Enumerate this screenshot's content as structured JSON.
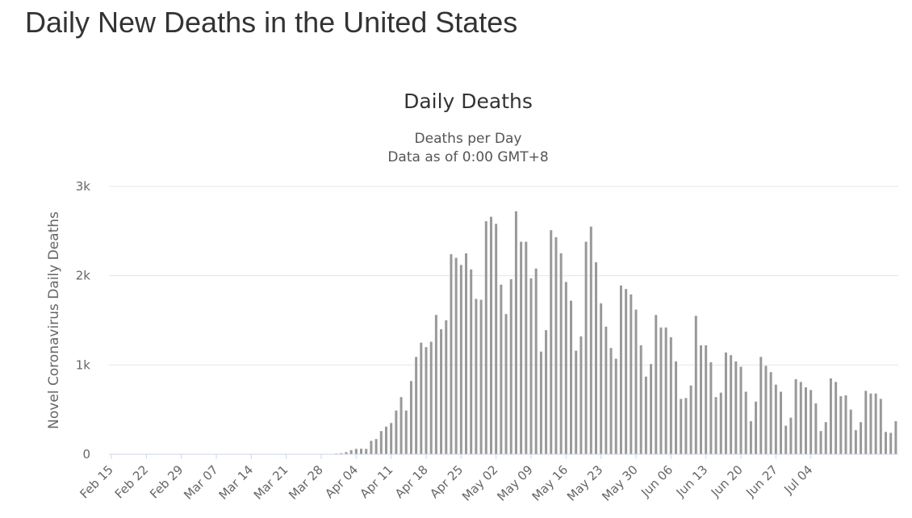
{
  "page": {
    "title": "Daily New Deaths in the United States"
  },
  "chart_data": {
    "type": "bar",
    "title": "Daily Deaths",
    "subtitle": [
      "Deaths per Day",
      "Data as of 0:00 GMT+8"
    ],
    "xlabel": "",
    "ylabel": "Novel Coronavirus Daily Deaths",
    "ylim": [
      0,
      3000
    ],
    "yticks": [
      {
        "value": 0,
        "label": "0"
      },
      {
        "value": 1000,
        "label": "1k"
      },
      {
        "value": 2000,
        "label": "2k"
      },
      {
        "value": 3000,
        "label": "3k"
      }
    ],
    "x_tick_labels": [
      "Feb 15",
      "Feb 22",
      "Feb 29",
      "Mar 07",
      "Mar 14",
      "Mar 21",
      "Mar 28",
      "Apr 04",
      "Apr 11",
      "Apr 18",
      "Apr 25",
      "May 02",
      "May 09",
      "May 16",
      "May 23",
      "May 30",
      "Jun 06",
      "Jun 13",
      "Jun 20",
      "Jun 27",
      "Jul 04"
    ],
    "grid": true,
    "bar_color": "#999999",
    "series": [
      {
        "values": [
          0,
          0,
          0,
          0,
          0,
          0,
          0,
          0,
          0,
          0,
          0,
          0,
          0,
          0,
          0,
          0,
          0,
          0,
          0,
          0,
          0,
          0,
          0,
          0,
          0,
          0,
          0,
          0,
          0,
          0,
          0,
          0,
          0,
          0,
          0,
          0,
          0,
          0,
          0,
          0,
          0,
          0,
          0,
          0,
          0,
          8,
          12,
          24,
          45,
          60,
          62,
          60,
          150,
          170,
          260,
          310,
          350,
          490,
          640,
          490,
          820,
          1090,
          1250,
          1200,
          1260,
          1560,
          1400,
          1500,
          2240,
          2200,
          2120,
          2250,
          2070,
          1740,
          1730,
          2610,
          2660,
          2580,
          1900,
          1570,
          1960,
          2720,
          2380,
          2380,
          1970,
          2080,
          1150,
          1390,
          2510,
          2430,
          2250,
          1930,
          1720,
          1160,
          1320,
          2380,
          2550,
          2150,
          1690,
          1430,
          1190,
          1070,
          1890,
          1850,
          1790,
          1620,
          1220,
          870,
          1010,
          1560,
          1420,
          1420,
          1310,
          1040,
          620,
          630,
          770,
          1550,
          1220,
          1220,
          1030,
          640,
          690,
          1140,
          1110,
          1040,
          980,
          700,
          370,
          590,
          1090,
          990,
          920,
          780,
          700,
          320,
          410,
          840,
          810,
          750,
          720,
          570,
          260,
          360,
          850,
          810,
          650,
          660,
          500,
          270,
          360,
          710,
          680,
          680,
          620,
          250,
          240,
          370
        ]
      }
    ]
  }
}
